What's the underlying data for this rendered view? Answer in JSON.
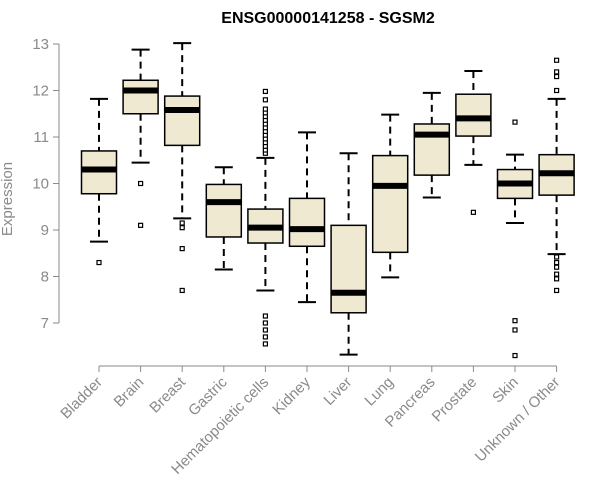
{
  "chart_data": {
    "type": "boxplot",
    "title": "ENSG00000141258 - SGSM2",
    "xlabel": "",
    "ylabel": "Expression",
    "ylim": [
      6.2,
      13.1
    ],
    "yticks": [
      7,
      8,
      9,
      10,
      11,
      12,
      13
    ],
    "grid": false,
    "categories": [
      "Bladder",
      "Brain",
      "Breast",
      "Gastric",
      "Hematopoietic cells",
      "Kidney",
      "Liver",
      "Lung",
      "Pancreas",
      "Prostate",
      "Skin",
      "Unknown / Other"
    ],
    "boxes": [
      {
        "category": "Bladder",
        "whisker_low": 8.75,
        "q1": 9.78,
        "median": 10.3,
        "q3": 10.7,
        "whisker_high": 11.82,
        "outliers": [
          8.3
        ]
      },
      {
        "category": "Brain",
        "whisker_low": 10.45,
        "q1": 11.5,
        "median": 12.0,
        "q3": 12.22,
        "whisker_high": 12.88,
        "outliers": [
          9.1,
          10.0
        ]
      },
      {
        "category": "Breast",
        "whisker_low": 9.25,
        "q1": 10.82,
        "median": 11.58,
        "q3": 11.88,
        "whisker_high": 13.02,
        "outliers": [
          7.7,
          8.6,
          9.05,
          9.15
        ]
      },
      {
        "category": "Gastric",
        "whisker_low": 8.15,
        "q1": 8.85,
        "median": 9.6,
        "q3": 9.98,
        "whisker_high": 10.35,
        "outliers": []
      },
      {
        "category": "Hematopoietic cells",
        "whisker_low": 7.7,
        "q1": 8.72,
        "median": 9.05,
        "q3": 9.45,
        "whisker_high": 10.55,
        "outliers": [
          6.55,
          6.7,
          6.85,
          7.0,
          7.15,
          10.65,
          10.72,
          10.8,
          10.88,
          10.96,
          11.04,
          11.12,
          11.2,
          11.28,
          11.36,
          11.44,
          11.52,
          11.6,
          11.8,
          11.98
        ]
      },
      {
        "category": "Kidney",
        "whisker_low": 7.45,
        "q1": 8.65,
        "median": 9.02,
        "q3": 9.68,
        "whisker_high": 11.1,
        "outliers": []
      },
      {
        "category": "Liver",
        "whisker_low": 6.32,
        "q1": 7.22,
        "median": 7.65,
        "q3": 9.1,
        "whisker_high": 10.65,
        "outliers": []
      },
      {
        "category": "Lung",
        "whisker_low": 7.98,
        "q1": 8.52,
        "median": 9.95,
        "q3": 10.6,
        "whisker_high": 11.48,
        "outliers": []
      },
      {
        "category": "Pancreas",
        "whisker_low": 9.7,
        "q1": 10.18,
        "median": 11.05,
        "q3": 11.28,
        "whisker_high": 11.95,
        "outliers": []
      },
      {
        "category": "Prostate",
        "whisker_low": 10.4,
        "q1": 11.02,
        "median": 11.4,
        "q3": 11.92,
        "whisker_high": 12.42,
        "outliers": [
          9.38
        ]
      },
      {
        "category": "Skin",
        "whisker_low": 9.15,
        "q1": 9.68,
        "median": 10.0,
        "q3": 10.3,
        "whisker_high": 10.62,
        "outliers": [
          6.3,
          6.85,
          7.05,
          11.32
        ]
      },
      {
        "category": "Unknown / Other",
        "whisker_low": 8.48,
        "q1": 9.75,
        "median": 10.22,
        "q3": 10.62,
        "whisker_high": 11.82,
        "outliers": [
          7.7,
          7.95,
          8.05,
          8.2,
          8.3,
          8.42,
          12.0,
          12.3,
          12.4,
          12.65
        ]
      }
    ],
    "box_fill": "#efe9d1",
    "box_stroke": "#000000",
    "tick_color": "#8a8a8a"
  }
}
